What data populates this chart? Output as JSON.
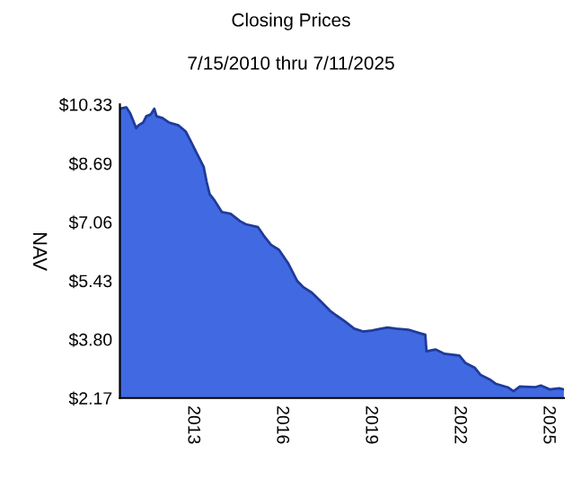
{
  "chart_data": {
    "type": "area",
    "title": "Closing Prices",
    "subtitle": "7/15/2010 thru 7/11/2025",
    "ylabel": "NAV",
    "x": [
      2010.54,
      2010.76,
      2010.89,
      2011.09,
      2011.17,
      2011.33,
      2011.43,
      2011.58,
      2011.7,
      2011.78,
      2011.98,
      2012.19,
      2012.51,
      2012.76,
      2012.92,
      2013.12,
      2013.37,
      2013.47,
      2013.57,
      2013.73,
      2013.98,
      2014.28,
      2014.59,
      2014.79,
      2015.2,
      2015.4,
      2015.64,
      2015.91,
      2016.21,
      2016.52,
      2016.72,
      2017.02,
      2017.33,
      2017.63,
      2017.84,
      2018.14,
      2018.45,
      2018.75,
      2019.06,
      2019.36,
      2019.57,
      2019.87,
      2020.28,
      2020.68,
      2020.85,
      2020.89,
      2021.19,
      2021.5,
      2022.0,
      2022.21,
      2022.51,
      2022.72,
      2023.02,
      2023.22,
      2023.63,
      2023.83,
      2024.04,
      2024.54,
      2024.75,
      2025.05,
      2025.36,
      2025.53
    ],
    "series": [
      {
        "color": "#4169e1",
        "values": [
          10.21,
          10.25,
          10.08,
          9.67,
          9.75,
          9.83,
          10.0,
          10.05,
          10.21,
          10.0,
          9.95,
          9.83,
          9.75,
          9.58,
          9.33,
          9.0,
          8.59,
          8.17,
          7.84,
          7.67,
          7.34,
          7.29,
          7.09,
          7.0,
          6.92,
          6.68,
          6.43,
          6.29,
          5.93,
          5.43,
          5.26,
          5.1,
          4.85,
          4.6,
          4.47,
          4.3,
          4.1,
          4.02,
          4.05,
          4.1,
          4.13,
          4.1,
          4.07,
          3.97,
          3.93,
          3.47,
          3.52,
          3.4,
          3.35,
          3.14,
          3.02,
          2.81,
          2.69,
          2.57,
          2.47,
          2.36,
          2.49,
          2.47,
          2.52,
          2.41,
          2.44,
          2.41
        ]
      }
    ],
    "xlim": [
      2010.54,
      2025.53
    ],
    "xticks": [
      2013,
      2016,
      2019,
      2022,
      2025
    ],
    "ylim": [
      2.17,
      10.33
    ],
    "yticks": [
      {
        "value": 2.17,
        "label": "$2.17"
      },
      {
        "value": 3.8,
        "label": "$3.80"
      },
      {
        "value": 5.43,
        "label": "$5.43"
      },
      {
        "value": 7.06,
        "label": "$7.06"
      },
      {
        "value": 8.69,
        "label": "$8.69"
      },
      {
        "value": 10.33,
        "label": "$10.33"
      }
    ],
    "grid": false,
    "legend": false
  }
}
